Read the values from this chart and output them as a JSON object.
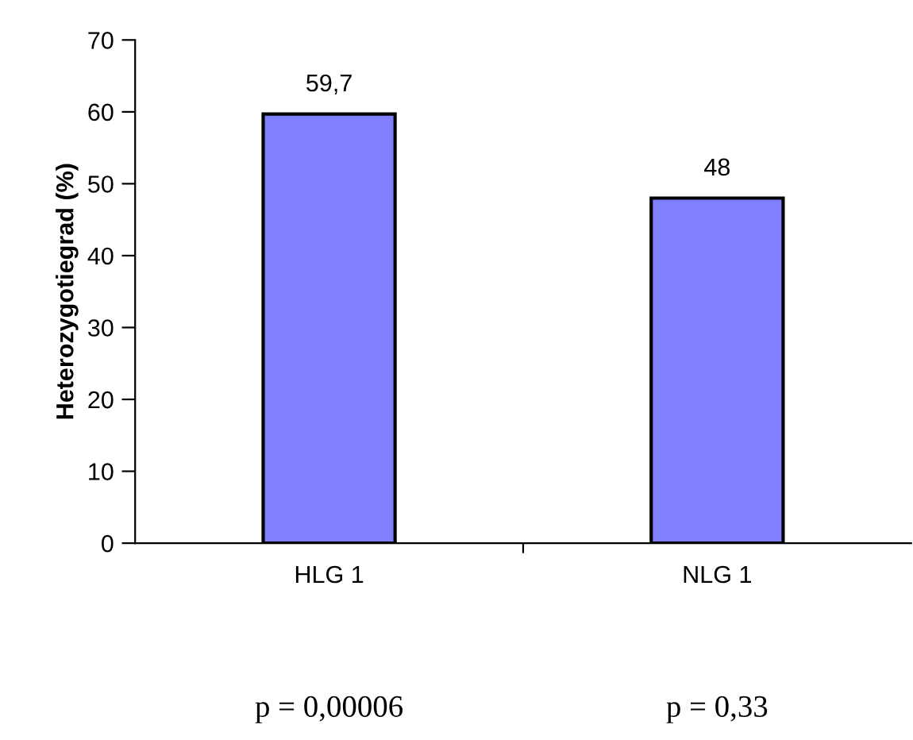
{
  "chart_data": {
    "type": "bar",
    "ylabel": "Heterozygotiegrad (%)",
    "categories": [
      "HLG 1",
      "NLG 1"
    ],
    "values": [
      59.7,
      48
    ],
    "value_labels": [
      "59,7",
      "48"
    ],
    "color": "#8080ff",
    "ylim": [
      0,
      70
    ],
    "yticks": [
      0,
      10,
      20,
      30,
      40,
      50,
      60,
      70
    ],
    "grid": false,
    "legend": false,
    "annotations": [
      "p = 0,00006",
      "p = 0,33"
    ]
  }
}
